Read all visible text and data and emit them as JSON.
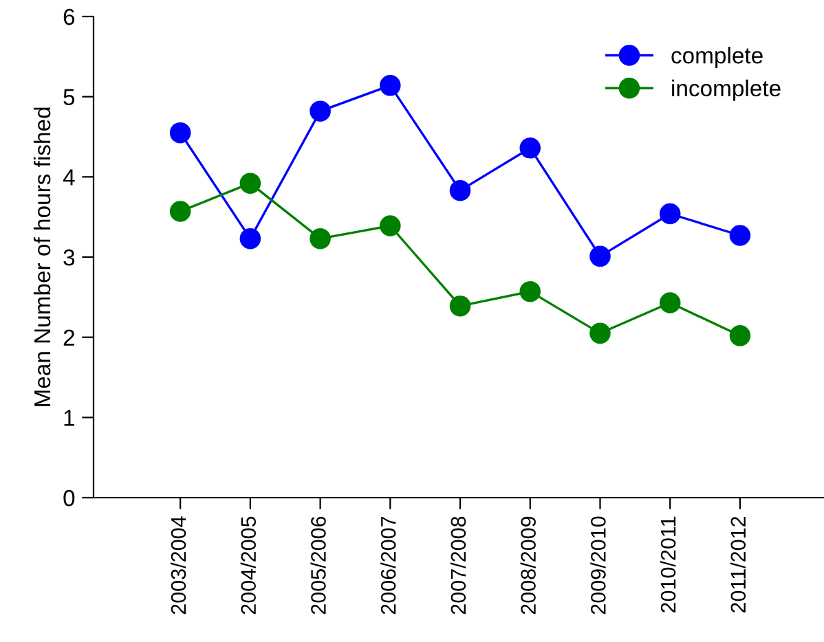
{
  "chart_data": {
    "type": "line",
    "ylabel": "Mean Number of hours fished",
    "categories": [
      "2003/2004",
      "2004/2005",
      "2005/2006",
      "2006/2007",
      "2007/2008",
      "2008/2009",
      "2009/2010",
      "2010/2011",
      "2011/2012"
    ],
    "series": [
      {
        "name": "complete",
        "color": "#0000ff",
        "values": [
          4.55,
          3.23,
          4.82,
          5.14,
          3.83,
          4.36,
          3.01,
          3.54,
          3.27
        ]
      },
      {
        "name": "incomplete",
        "color": "#008000",
        "values": [
          3.57,
          3.92,
          3.23,
          3.39,
          2.39,
          2.57,
          2.05,
          2.43,
          2.02
        ]
      }
    ],
    "ylim": [
      0,
      6
    ],
    "yticks": [
      0,
      1,
      2,
      3,
      4,
      5,
      6
    ],
    "grid": false,
    "legend": "top right",
    "marker": "circle",
    "line_style": "solid"
  }
}
